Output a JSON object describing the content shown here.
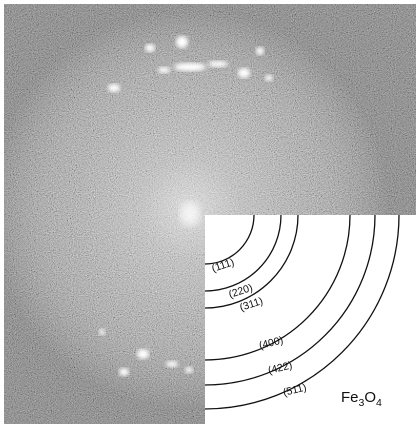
{
  "figure": {
    "reflections": [
      "(111)",
      "(220)",
      "(311)",
      "(400)",
      "(422)",
      "(511)"
    ],
    "compound": {
      "base": "Fe",
      "sub1": "3",
      "mid": "O",
      "sub2": "4"
    }
  },
  "colors": {
    "pattern_background": "#7a7a7a",
    "spots": "#ffffff",
    "overlay_background": "#ffffff",
    "rings": "#111111",
    "labels": "#111111"
  }
}
